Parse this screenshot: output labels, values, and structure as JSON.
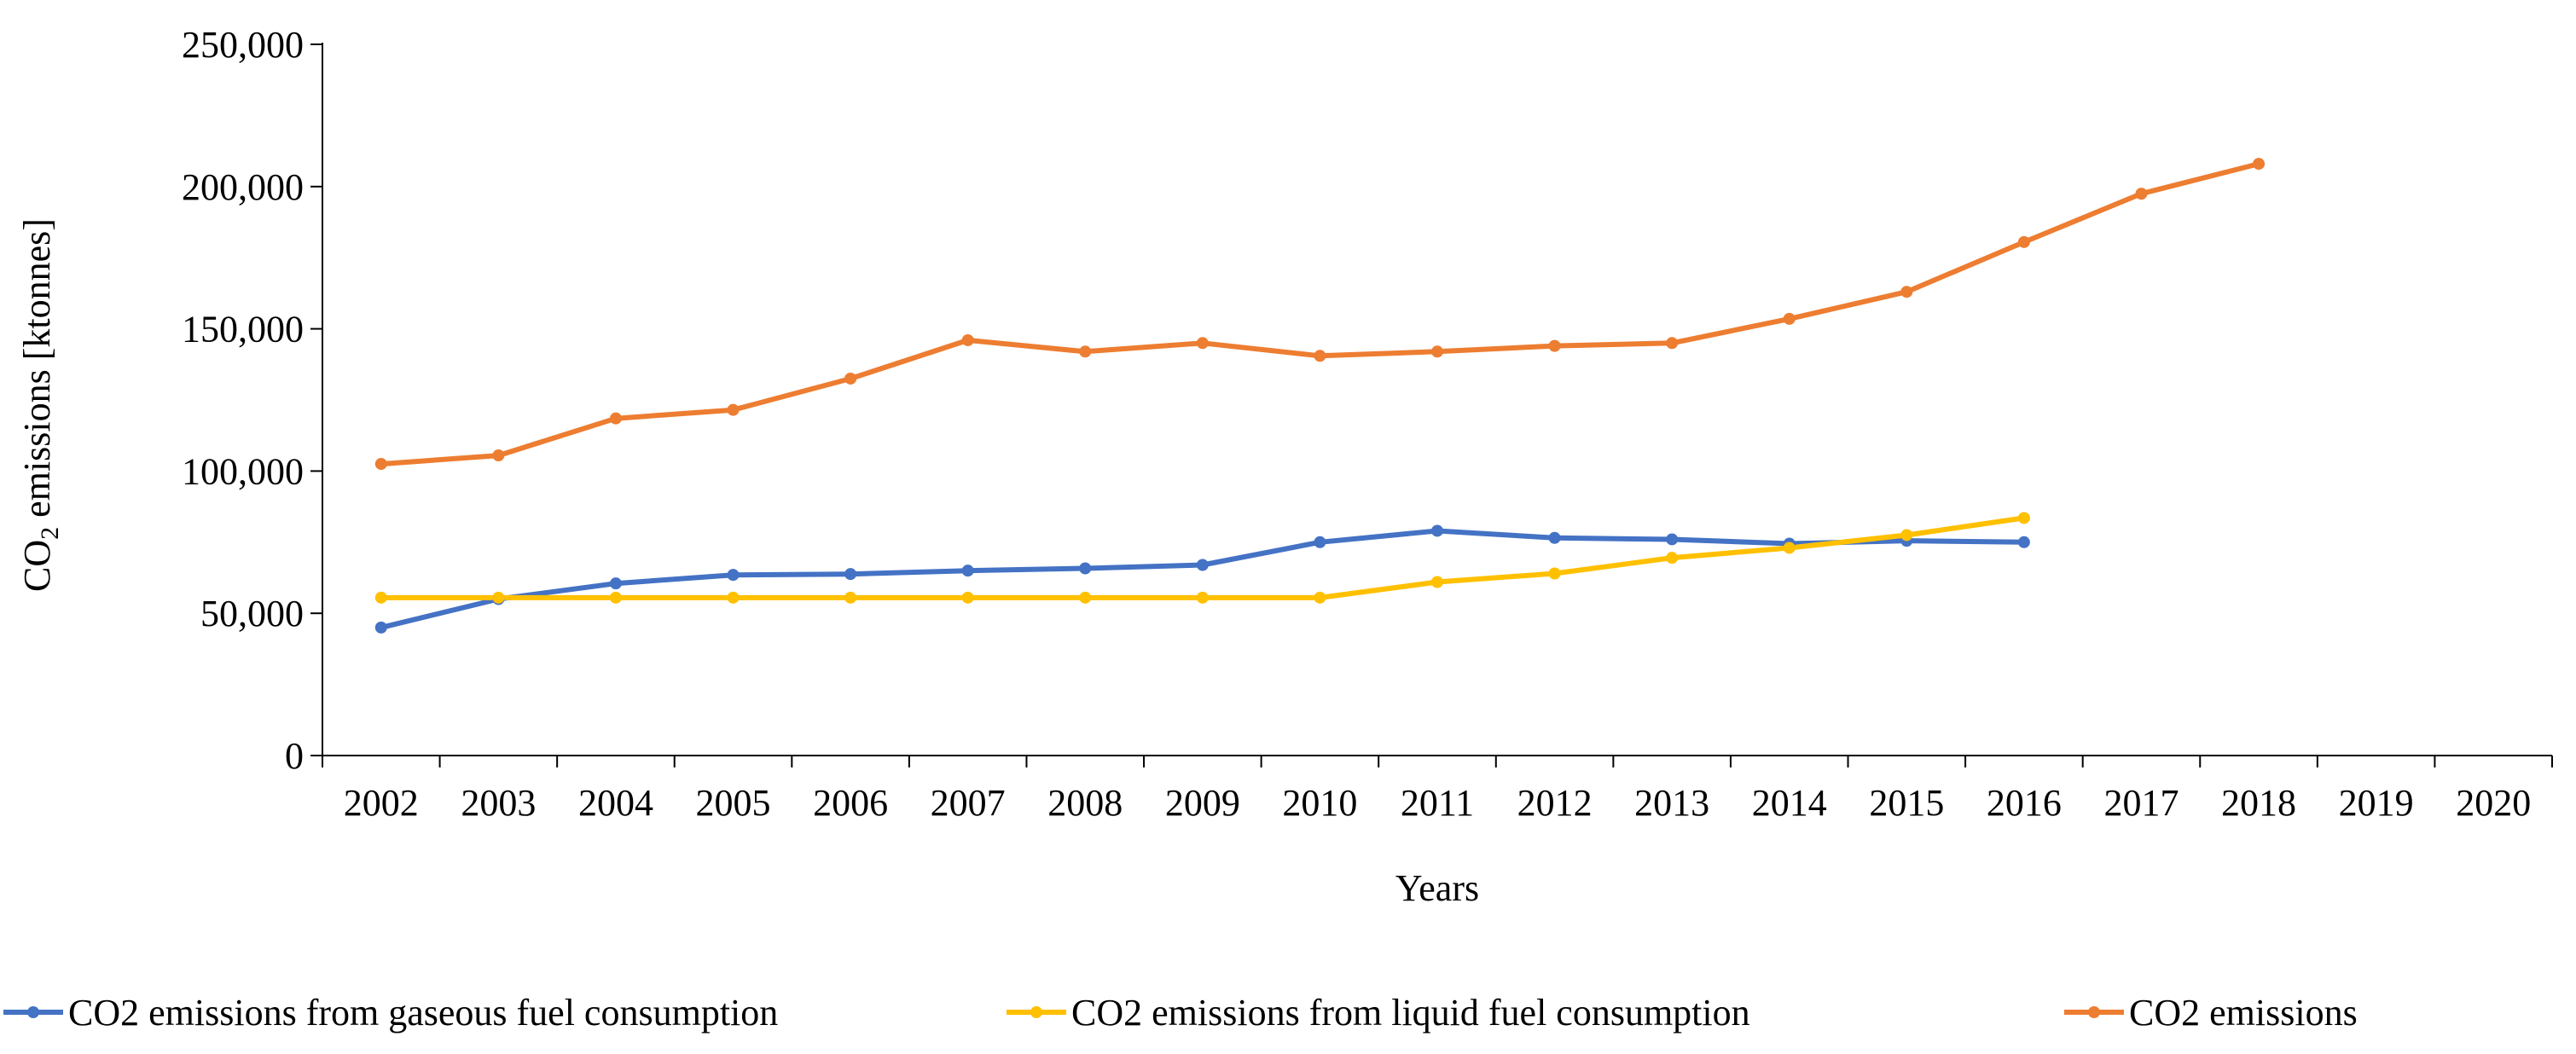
{
  "chart_data": {
    "type": "line",
    "title": "",
    "xlabel": "Years",
    "ylabel": {
      "prefix": "CO",
      "subscript": "2",
      "suffix": " emissions [ktonnes]"
    },
    "ylim": [
      0,
      250000
    ],
    "yticks": [
      0,
      50000,
      100000,
      150000,
      200000,
      250000
    ],
    "ytick_labels": [
      "0",
      "50,000",
      "100,000",
      "150,000",
      "200,000",
      "250,000"
    ],
    "categories": [
      "2002",
      "2003",
      "2004",
      "2005",
      "2006",
      "2007",
      "2008",
      "2009",
      "2010",
      "2011",
      "2012",
      "2013",
      "2014",
      "2015",
      "2016",
      "2017",
      "2018",
      "2019",
      "2020"
    ],
    "grid": false,
    "legend_position": "bottom",
    "series": [
      {
        "name": "CO2 emissions from gaseous fuel consumption",
        "color": "#4472C4",
        "values": [
          45000,
          55000,
          60500,
          63500,
          63800,
          65000,
          65800,
          67000,
          75000,
          79000,
          76500,
          76000,
          74500,
          75500,
          75000,
          null,
          null,
          null,
          null
        ]
      },
      {
        "name": "CO2 emissions from liquid fuel consumption",
        "color": "#FFC000",
        "values": [
          55500,
          55500,
          55500,
          55500,
          55500,
          55500,
          55500,
          55500,
          55500,
          61000,
          64000,
          69500,
          73000,
          77500,
          83500,
          null,
          null,
          null,
          null
        ]
      },
      {
        "name": "CO2 emissions",
        "color": "#ED7D31",
        "values": [
          102500,
          105500,
          118500,
          121500,
          132500,
          146000,
          142000,
          145000,
          140500,
          142000,
          144000,
          145000,
          153500,
          163000,
          180500,
          197500,
          208000,
          null,
          null
        ]
      }
    ]
  }
}
